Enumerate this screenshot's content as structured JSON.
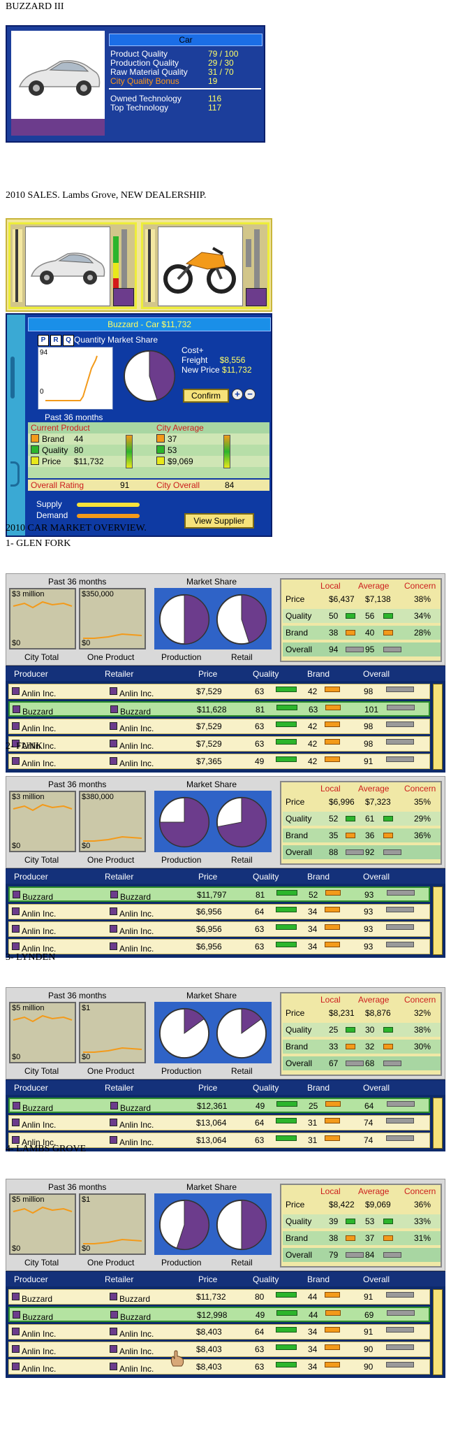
{
  "product": {
    "title": "BUZZARD III",
    "category": "Car",
    "rows": [
      {
        "label": "Product Quality",
        "value": "79 / 100"
      },
      {
        "label": "Production Quality",
        "value": "29 / 30"
      },
      {
        "label": "Raw Material Quality",
        "value": "31 / 70"
      },
      {
        "label": "City Quality Bonus",
        "value": "19"
      }
    ],
    "tech": [
      {
        "label": "Owned Technology",
        "value": "116"
      },
      {
        "label": "Top Technology",
        "value": "117"
      }
    ]
  },
  "sales": {
    "title": "2010 SALES. Lambs Grove, NEW DEALERSHIP.",
    "header": "Buzzard - Car  $11,732",
    "prq": [
      "P",
      "R",
      "Q"
    ],
    "quantity_label": "Quantity Market Share",
    "graph_top": "94",
    "graph_bottom": "0",
    "past": "Past 36 months",
    "cost_freight_label": "Cost+\nFreight",
    "cost_freight_value": "$8,556",
    "new_price_label": "New Price",
    "new_price_value": "$11,732",
    "confirm": "Confirm",
    "plus": "+",
    "minus": "−",
    "current_product": "Current Product",
    "city_average": "City Average",
    "rows": [
      {
        "label": "Brand",
        "value": "44",
        "city": "37",
        "color": "#f39a1a"
      },
      {
        "label": "Quality",
        "value": "80",
        "city": "53",
        "color": "#2cb52c"
      },
      {
        "label": "Price",
        "value": "$11,732",
        "city": "$9,069",
        "color": "#e8e81a"
      }
    ],
    "overall_rating_label": "Overall Rating",
    "overall_rating_value": "91",
    "city_overall_label": "City Overall",
    "city_overall_value": "84",
    "supply": "Supply",
    "demand": "Demand",
    "view_supplier": "View Supplier",
    "pie_share": 0.45
  },
  "overview_title": "2010 CAR MARKET OVERVIEW.",
  "markets": [
    {
      "name": "1- GLEN FORK",
      "city_total_top": "$3 million",
      "one_product_top": "$350,000",
      "production_share": 0.5,
      "retail_share": 0.45,
      "stats": [
        {
          "label": "Price",
          "local": "$6,437",
          "average": "$7,138",
          "concern": "38%"
        },
        {
          "label": "Quality",
          "local": "50",
          "average": "56",
          "concern": "34%"
        },
        {
          "label": "Brand",
          "local": "38",
          "average": "40",
          "concern": "28%"
        },
        {
          "label": "Overall",
          "local": "94",
          "average": "95",
          "concern": ""
        }
      ],
      "rows": [
        {
          "producer": "Anlin Inc.",
          "retailer": "Anlin Inc.",
          "price": "$7,529",
          "quality": "63",
          "brand": "42",
          "overall": "98",
          "hl": false
        },
        {
          "producer": "Buzzard",
          "retailer": "Buzzard",
          "price": "$11,628",
          "quality": "81",
          "brand": "63",
          "overall": "101",
          "hl": true
        },
        {
          "producer": "Anlin Inc.",
          "retailer": "Anlin Inc.",
          "price": "$7,529",
          "quality": "63",
          "brand": "42",
          "overall": "98",
          "hl": false
        },
        {
          "producer": "Anlin Inc.",
          "retailer": "Anlin Inc.",
          "price": "$7,529",
          "quality": "63",
          "brand": "42",
          "overall": "98",
          "hl": false
        },
        {
          "producer": "Anlin Inc.",
          "retailer": "Anlin Inc.",
          "price": "$7,365",
          "quality": "49",
          "brand": "42",
          "overall": "91",
          "hl": false
        }
      ]
    },
    {
      "name": "2- FUNK",
      "city_total_top": "$3 million",
      "one_product_top": "$380,000",
      "production_share": 0.75,
      "retail_share": 0.72,
      "stats": [
        {
          "label": "Price",
          "local": "$6,996",
          "average": "$7,323",
          "concern": "35%"
        },
        {
          "label": "Quality",
          "local": "52",
          "average": "61",
          "concern": "29%"
        },
        {
          "label": "Brand",
          "local": "35",
          "average": "36",
          "concern": "36%"
        },
        {
          "label": "Overall",
          "local": "88",
          "average": "92",
          "concern": ""
        }
      ],
      "rows": [
        {
          "producer": "Buzzard",
          "retailer": "Buzzard",
          "price": "$11,797",
          "quality": "81",
          "brand": "52",
          "overall": "93",
          "hl": true
        },
        {
          "producer": "Anlin Inc.",
          "retailer": "Anlin Inc.",
          "price": "$6,956",
          "quality": "64",
          "brand": "34",
          "overall": "93",
          "hl": false
        },
        {
          "producer": "Anlin Inc.",
          "retailer": "Anlin Inc.",
          "price": "$6,956",
          "quality": "63",
          "brand": "34",
          "overall": "93",
          "hl": false
        },
        {
          "producer": "Anlin Inc.",
          "retailer": "Anlin Inc.",
          "price": "$6,956",
          "quality": "63",
          "brand": "34",
          "overall": "93",
          "hl": false
        }
      ]
    },
    {
      "name": "3- LYNDEN",
      "city_total_top": "$5 million",
      "one_product_top": "$1",
      "production_share": 0.15,
      "retail_share": 0.15,
      "stats": [
        {
          "label": "Price",
          "local": "$8,231",
          "average": "$8,876",
          "concern": "32%"
        },
        {
          "label": "Quality",
          "local": "25",
          "average": "30",
          "concern": "38%"
        },
        {
          "label": "Brand",
          "local": "33",
          "average": "32",
          "concern": "30%"
        },
        {
          "label": "Overall",
          "local": "67",
          "average": "68",
          "concern": ""
        }
      ],
      "rows": [
        {
          "producer": "Buzzard",
          "retailer": "Buzzard",
          "price": "$12,361",
          "quality": "49",
          "brand": "25",
          "overall": "64",
          "hl": true
        },
        {
          "producer": "Anlin Inc.",
          "retailer": "Anlin Inc.",
          "price": "$13,064",
          "quality": "64",
          "brand": "31",
          "overall": "74",
          "hl": false
        },
        {
          "producer": "Anlin Inc.",
          "retailer": "Anlin Inc.",
          "price": "$13,064",
          "quality": "63",
          "brand": "31",
          "overall": "74",
          "hl": false
        }
      ]
    },
    {
      "name": "4- LAMBS GROVE",
      "city_total_top": "$5 million",
      "one_product_top": "$1",
      "production_share": 0.55,
      "retail_share": 0.5,
      "stats": [
        {
          "label": "Price",
          "local": "$8,422",
          "average": "$9,069",
          "concern": "36%"
        },
        {
          "label": "Quality",
          "local": "39",
          "average": "53",
          "concern": "33%"
        },
        {
          "label": "Brand",
          "local": "38",
          "average": "37",
          "concern": "31%"
        },
        {
          "label": "Overall",
          "local": "79",
          "average": "84",
          "concern": ""
        }
      ],
      "rows": [
        {
          "producer": "Buzzard",
          "retailer": "Buzzard",
          "price": "$11,732",
          "quality": "80",
          "brand": "44",
          "overall": "91",
          "hl": false
        },
        {
          "producer": "Buzzard",
          "retailer": "Buzzard",
          "price": "$12,998",
          "quality": "49",
          "brand": "44",
          "overall": "69",
          "hl": true
        },
        {
          "producer": "Anlin Inc.",
          "retailer": "Anlin Inc.",
          "price": "$8,403",
          "quality": "64",
          "brand": "34",
          "overall": "91",
          "hl": false
        },
        {
          "producer": "Anlin Inc.",
          "retailer": "Anlin Inc.",
          "price": "$8,403",
          "quality": "63",
          "brand": "34",
          "overall": "90",
          "hl": false
        },
        {
          "producer": "Anlin Inc.",
          "retailer": "Anlin Inc.",
          "price": "$8,403",
          "quality": "63",
          "brand": "34",
          "overall": "90",
          "hl": false
        }
      ]
    }
  ],
  "labels": {
    "past36": "Past 36 months",
    "market_share": "Market Share",
    "city_total": "City Total",
    "one_product": "One Product",
    "production": "Production",
    "retail": "Retail",
    "zero": "$0",
    "local": "Local",
    "average": "Average",
    "concern": "Concern",
    "producer": "Producer",
    "retailer": "Retailer",
    "price": "Price",
    "quality": "Quality",
    "brand": "Brand",
    "overall": "Overall"
  }
}
